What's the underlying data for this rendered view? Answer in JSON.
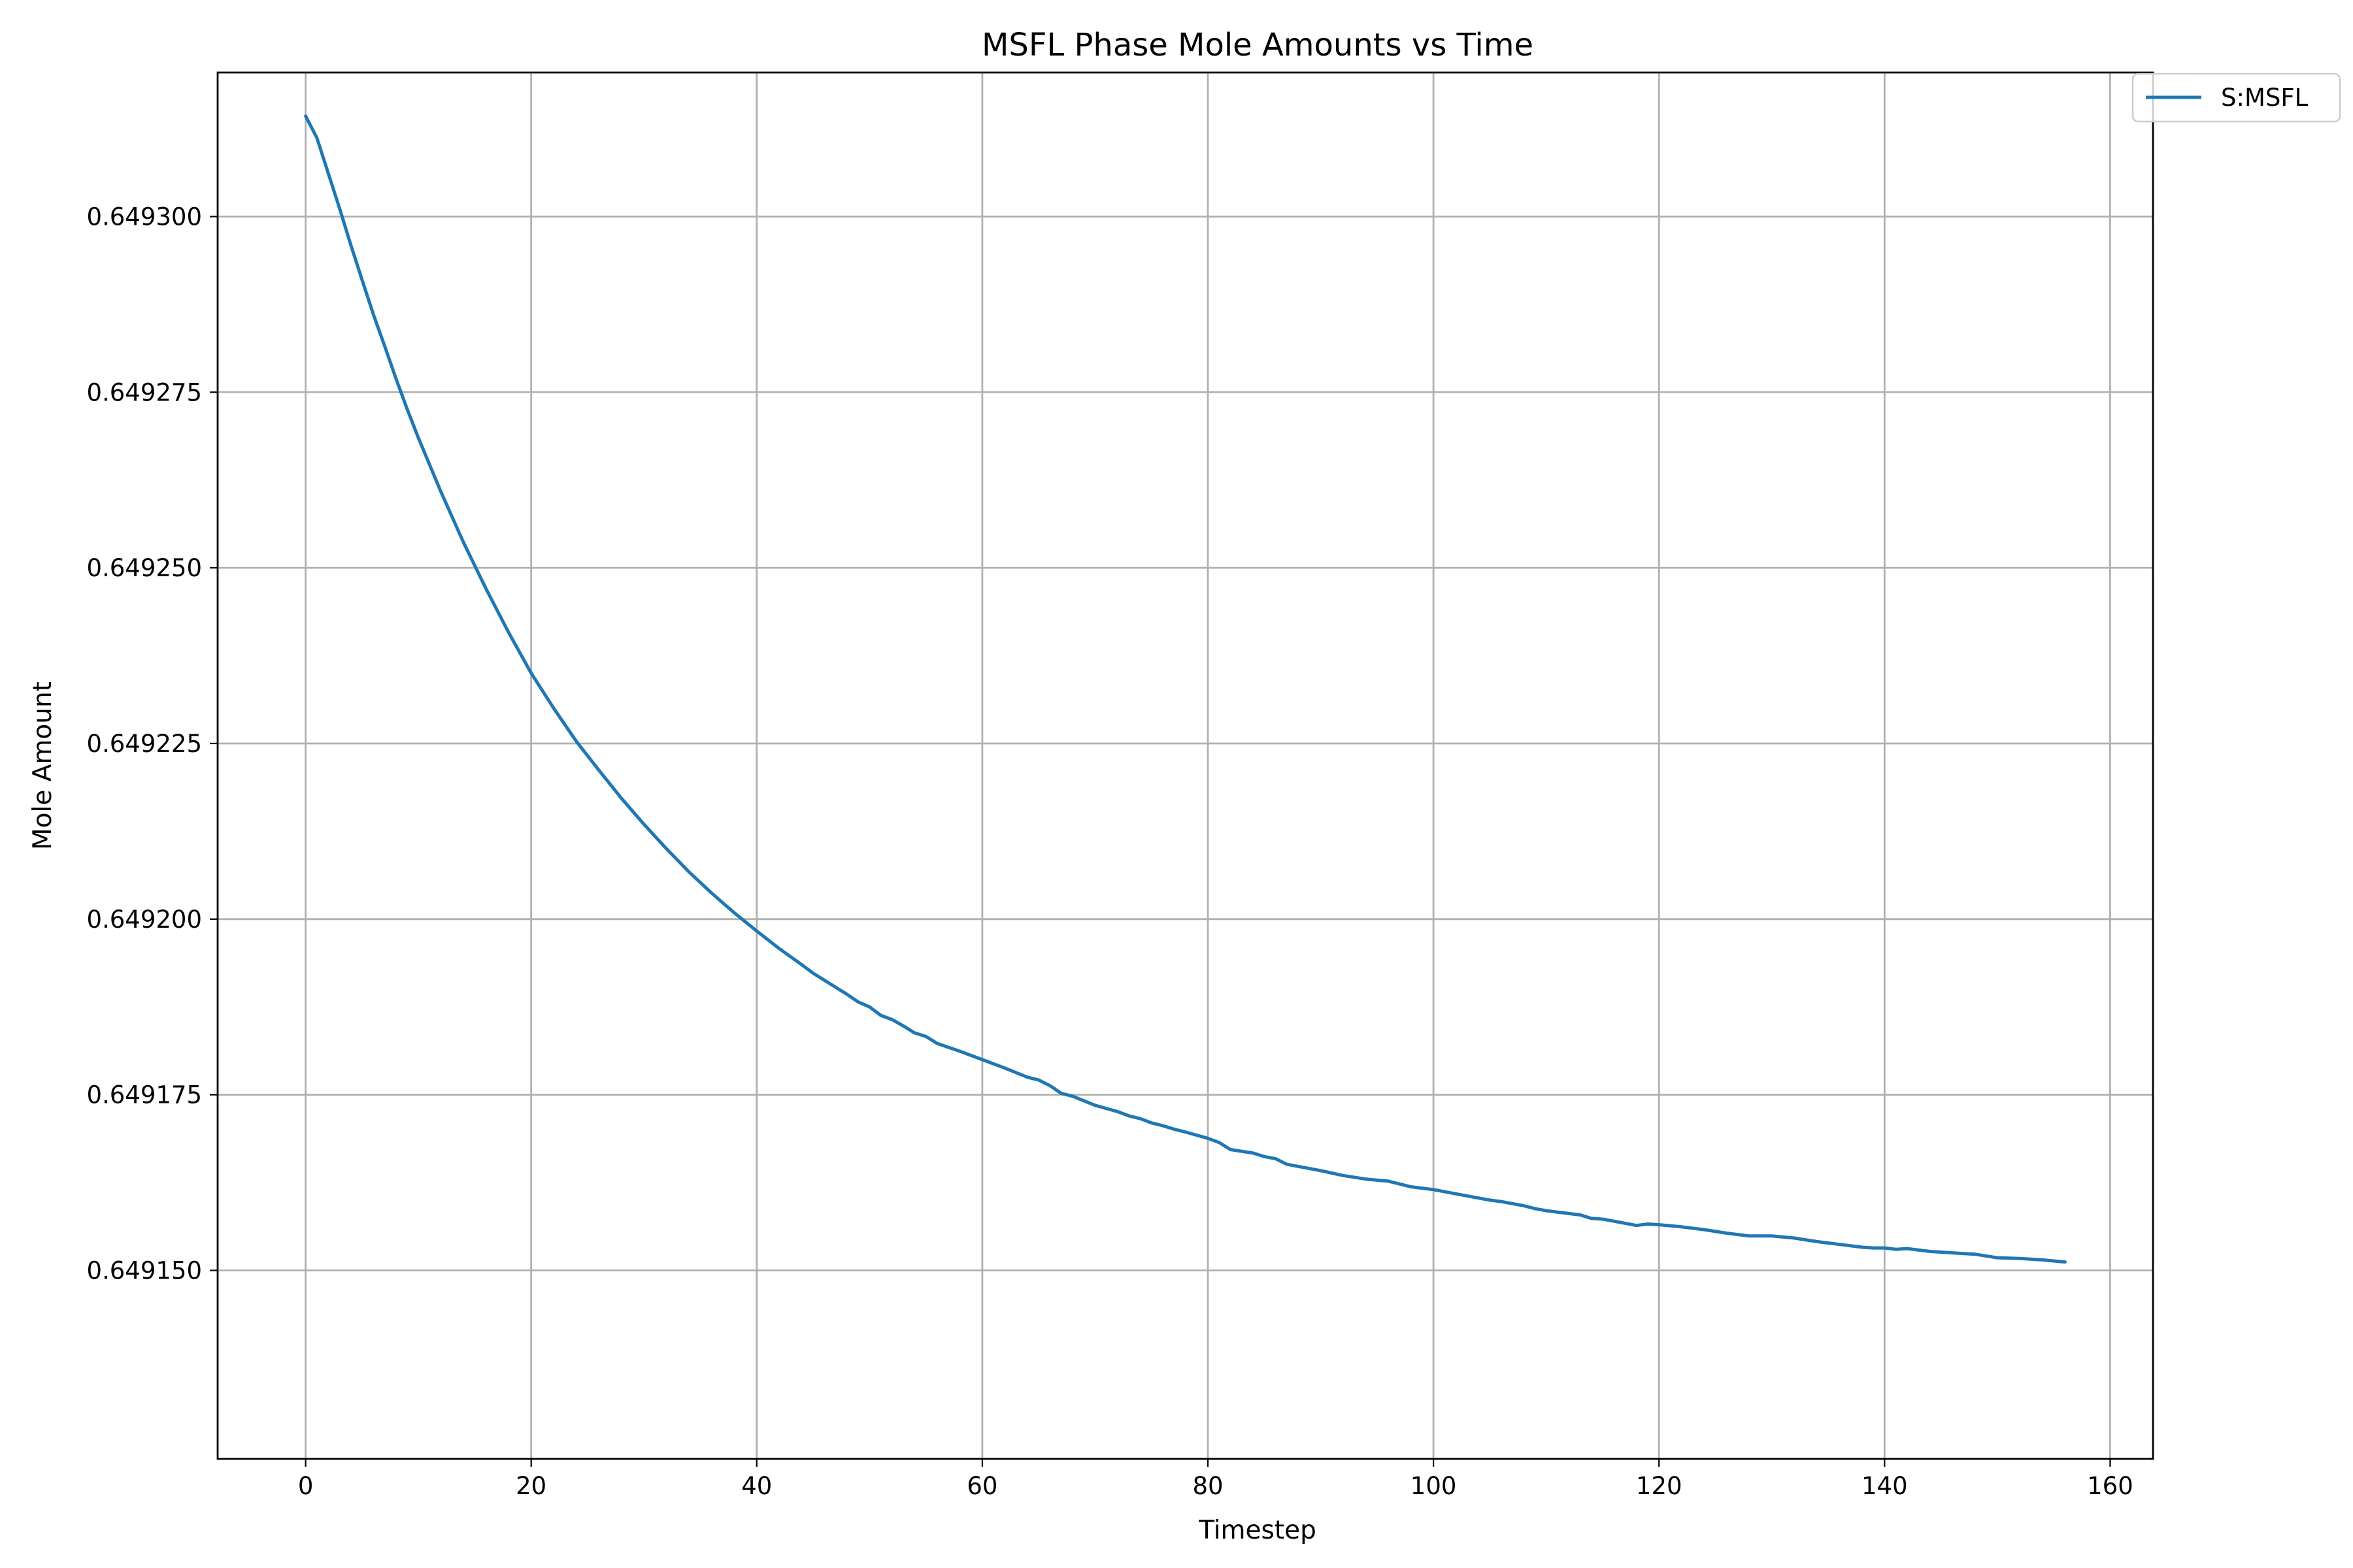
{
  "chart_data": {
    "type": "line",
    "title": "MSFL Phase Mole Amounts vs Time",
    "xlabel": "Timestep",
    "ylabel": "Mole Amount",
    "xlim": [
      -7.8,
      163.8
    ],
    "ylim": [
      0.64912317,
      0.6493205
    ],
    "grid": true,
    "legend_position": "top-right",
    "x_ticks": [
      0,
      20,
      40,
      60,
      80,
      100,
      120,
      140,
      160
    ],
    "x_tick_labels": [
      "0",
      "20",
      "40",
      "60",
      "80",
      "100",
      "120",
      "140",
      "160"
    ],
    "y_ticks": [
      0.64915,
      0.649175,
      0.6492,
      0.649225,
      0.64925,
      0.649275,
      0.6493
    ],
    "y_tick_labels": [
      "0.649150",
      "0.649175",
      "0.649200",
      "0.649225",
      "0.649250",
      "0.649275",
      "0.649300"
    ],
    "series": [
      {
        "name": "S:MSFL",
        "color": "#1f77b4",
        "x": [
          0,
          1,
          2,
          3,
          4,
          5,
          6,
          7,
          8,
          9,
          10,
          12,
          14,
          16,
          18,
          20,
          22,
          24,
          26,
          28,
          30,
          32,
          34,
          36,
          38,
          40,
          42,
          44,
          45,
          46,
          48,
          49,
          50,
          51,
          52,
          53,
          54,
          55,
          56,
          58,
          60,
          62,
          64,
          65,
          66,
          67,
          68,
          70,
          72,
          73,
          74,
          75,
          76,
          77,
          78,
          80,
          81,
          82,
          84,
          85,
          86,
          87,
          88,
          90,
          92,
          94,
          96,
          97,
          98,
          100,
          102,
          104,
          105,
          106,
          107,
          108,
          109,
          110,
          112,
          113,
          114,
          115,
          116,
          117,
          118,
          119,
          120,
          122,
          124,
          126,
          128,
          130,
          132,
          134,
          136,
          138,
          139,
          140,
          141,
          142,
          144,
          146,
          148,
          150,
          152,
          154,
          156
        ],
        "values": [
          0.6493143,
          0.6493112,
          0.6493062,
          0.6493012,
          0.649296,
          0.649291,
          0.6492861,
          0.6492816,
          0.649277,
          0.6492726,
          0.6492685,
          0.6492608,
          0.6492536,
          0.649247,
          0.6492408,
          0.649235,
          0.64923,
          0.6492253,
          0.6492212,
          0.6492172,
          0.6492135,
          0.64921,
          0.6492067,
          0.6492037,
          0.6492009,
          0.6491983,
          0.6491958,
          0.6491935,
          0.6491923,
          0.6491913,
          0.6491893,
          0.6491882,
          0.6491875,
          0.6491863,
          0.6491857,
          0.6491848,
          0.6491838,
          0.6491833,
          0.6491823,
          0.6491812,
          0.64918,
          0.6491788,
          0.6491775,
          0.6491771,
          0.6491763,
          0.6491752,
          0.6491748,
          0.6491735,
          0.6491726,
          0.649172,
          0.6491716,
          0.649171,
          0.6491706,
          0.6491701,
          0.6491697,
          0.6491688,
          0.6491682,
          0.6491672,
          0.6491667,
          0.6491662,
          0.6491659,
          0.6491651,
          0.6491648,
          0.6491642,
          0.6491635,
          0.649163,
          0.6491627,
          0.6491623,
          0.6491619,
          0.6491615,
          0.6491609,
          0.6491603,
          0.64916,
          0.6491598,
          0.6491595,
          0.6491592,
          0.6491588,
          0.6491585,
          0.6491581,
          0.6491579,
          0.6491574,
          0.6491573,
          0.649157,
          0.6491567,
          0.6491564,
          0.6491566,
          0.6491565,
          0.6491562,
          0.6491558,
          0.6491553,
          0.6491549,
          0.6491549,
          0.6491546,
          0.6491541,
          0.6491537,
          0.6491533,
          0.6491532,
          0.6491532,
          0.649153,
          0.6491531,
          0.6491527,
          0.6491525,
          0.6491523,
          0.6491518,
          0.6491517,
          0.6491515,
          0.6491512
        ]
      }
    ]
  }
}
